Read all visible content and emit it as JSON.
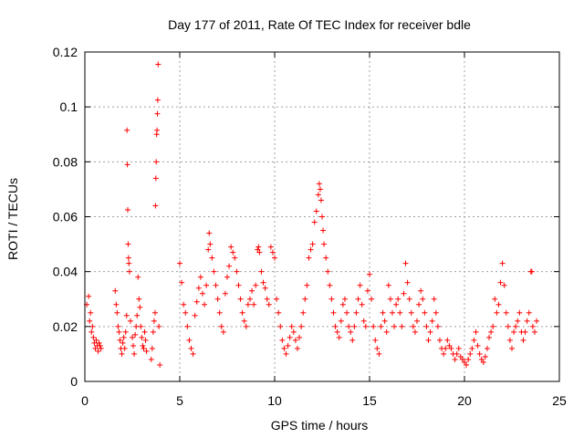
{
  "chart_data": {
    "type": "scatter",
    "title": "Day 177 of 2011, Rate Of TEC Index for receiver bdle",
    "xlabel": "GPS time / hours",
    "ylabel": "ROTI / TECUs",
    "xlim": [
      0,
      25
    ],
    "ylim": [
      0,
      0.12
    ],
    "xticks": [
      0,
      5,
      10,
      15,
      20,
      25
    ],
    "yticks": [
      0,
      0.02,
      0.04,
      0.06,
      0.08,
      0.1,
      0.12
    ],
    "xtick_labels": [
      "0",
      "5",
      "10",
      "15",
      "20",
      "25"
    ],
    "ytick_labels": [
      "0",
      "0.02",
      "0.04",
      "0.06",
      "0.08",
      "0.1",
      "0.12"
    ],
    "grid": true,
    "marker": "+",
    "color": "#ff0000",
    "series": [
      {
        "name": "ROTI",
        "points": [
          [
            0.1,
            0.028
          ],
          [
            0.2,
            0.031
          ],
          [
            0.25,
            0.022
          ],
          [
            0.3,
            0.025
          ],
          [
            0.35,
            0.018
          ],
          [
            0.4,
            0.02
          ],
          [
            0.45,
            0.016
          ],
          [
            0.5,
            0.014
          ],
          [
            0.55,
            0.012
          ],
          [
            0.6,
            0.015
          ],
          [
            0.65,
            0.013
          ],
          [
            0.7,
            0.011
          ],
          [
            0.75,
            0.014
          ],
          [
            0.8,
            0.013
          ],
          [
            0.85,
            0.012
          ],
          [
            1.6,
            0.033
          ],
          [
            1.65,
            0.028
          ],
          [
            1.7,
            0.025
          ],
          [
            1.75,
            0.02
          ],
          [
            1.8,
            0.018
          ],
          [
            1.85,
            0.015
          ],
          [
            1.9,
            0.012
          ],
          [
            1.95,
            0.01
          ],
          [
            2.0,
            0.014
          ],
          [
            2.05,
            0.016
          ],
          [
            2.1,
            0.012
          ],
          [
            2.15,
            0.018
          ],
          [
            2.2,
            0.024
          ],
          [
            2.22,
            0.0915
          ],
          [
            2.24,
            0.079
          ],
          [
            2.26,
            0.0625
          ],
          [
            2.28,
            0.05
          ],
          [
            2.3,
            0.045
          ],
          [
            2.32,
            0.043
          ],
          [
            2.35,
            0.04
          ],
          [
            2.4,
            0.022
          ],
          [
            2.5,
            0.016
          ],
          [
            2.55,
            0.013
          ],
          [
            2.6,
            0.01
          ],
          [
            2.65,
            0.017
          ],
          [
            2.7,
            0.02
          ],
          [
            2.75,
            0.024
          ],
          [
            2.8,
            0.038
          ],
          [
            2.85,
            0.03
          ],
          [
            2.9,
            0.027
          ],
          [
            2.95,
            0.02
          ],
          [
            3.0,
            0.016
          ],
          [
            3.05,
            0.013
          ],
          [
            3.1,
            0.012
          ],
          [
            3.15,
            0.018
          ],
          [
            3.2,
            0.015
          ],
          [
            3.25,
            0.011
          ],
          [
            3.5,
            0.008
          ],
          [
            3.55,
            0.012
          ],
          [
            3.6,
            0.018
          ],
          [
            3.65,
            0.022
          ],
          [
            3.7,
            0.025
          ],
          [
            3.72,
            0.064
          ],
          [
            3.74,
            0.074
          ],
          [
            3.76,
            0.08
          ],
          [
            3.78,
            0.09
          ],
          [
            3.8,
            0.0915
          ],
          [
            3.82,
            0.0975
          ],
          [
            3.84,
            0.1025
          ],
          [
            3.86,
            0.1155
          ],
          [
            3.9,
            0.02
          ],
          [
            3.95,
            0.006
          ],
          [
            5.0,
            0.043
          ],
          [
            5.1,
            0.036
          ],
          [
            5.2,
            0.028
          ],
          [
            5.3,
            0.025
          ],
          [
            5.4,
            0.02
          ],
          [
            5.5,
            0.015
          ],
          [
            5.6,
            0.012
          ],
          [
            5.7,
            0.01
          ],
          [
            5.8,
            0.024
          ],
          [
            5.9,
            0.029
          ],
          [
            6.0,
            0.034
          ],
          [
            6.1,
            0.038
          ],
          [
            6.2,
            0.032
          ],
          [
            6.3,
            0.028
          ],
          [
            6.4,
            0.035
          ],
          [
            6.5,
            0.048
          ],
          [
            6.55,
            0.054
          ],
          [
            6.6,
            0.05
          ],
          [
            6.7,
            0.045
          ],
          [
            6.8,
            0.04
          ],
          [
            6.9,
            0.035
          ],
          [
            7.0,
            0.03
          ],
          [
            7.1,
            0.025
          ],
          [
            7.2,
            0.02
          ],
          [
            7.3,
            0.018
          ],
          [
            7.4,
            0.032
          ],
          [
            7.5,
            0.038
          ],
          [
            7.6,
            0.042
          ],
          [
            7.7,
            0.049
          ],
          [
            7.8,
            0.047
          ],
          [
            7.9,
            0.045
          ],
          [
            8.0,
            0.04
          ],
          [
            8.1,
            0.035
          ],
          [
            8.2,
            0.03
          ],
          [
            8.3,
            0.025
          ],
          [
            8.4,
            0.022
          ],
          [
            8.5,
            0.02
          ],
          [
            8.6,
            0.028
          ],
          [
            8.7,
            0.03
          ],
          [
            8.8,
            0.033
          ],
          [
            8.9,
            0.028
          ],
          [
            9.0,
            0.035
          ],
          [
            9.1,
            0.048
          ],
          [
            9.15,
            0.049
          ],
          [
            9.2,
            0.047
          ],
          [
            9.3,
            0.04
          ],
          [
            9.4,
            0.036
          ],
          [
            9.5,
            0.034
          ],
          [
            9.6,
            0.03
          ],
          [
            9.7,
            0.028
          ],
          [
            9.8,
            0.049
          ],
          [
            9.9,
            0.047
          ],
          [
            10.0,
            0.045
          ],
          [
            10.1,
            0.03
          ],
          [
            10.2,
            0.025
          ],
          [
            10.3,
            0.02
          ],
          [
            10.4,
            0.015
          ],
          [
            10.5,
            0.012
          ],
          [
            10.6,
            0.01
          ],
          [
            10.7,
            0.013
          ],
          [
            10.8,
            0.016
          ],
          [
            10.9,
            0.02
          ],
          [
            11.0,
            0.018
          ],
          [
            11.1,
            0.015
          ],
          [
            11.2,
            0.012
          ],
          [
            11.3,
            0.016
          ],
          [
            11.4,
            0.02
          ],
          [
            11.5,
            0.025
          ],
          [
            11.6,
            0.03
          ],
          [
            11.7,
            0.035
          ],
          [
            11.8,
            0.045
          ],
          [
            11.9,
            0.048
          ],
          [
            12.0,
            0.05
          ],
          [
            12.1,
            0.058
          ],
          [
            12.2,
            0.062
          ],
          [
            12.3,
            0.068
          ],
          [
            12.35,
            0.072
          ],
          [
            12.4,
            0.07
          ],
          [
            12.45,
            0.066
          ],
          [
            12.5,
            0.06
          ],
          [
            12.55,
            0.055
          ],
          [
            12.6,
            0.05
          ],
          [
            12.7,
            0.045
          ],
          [
            12.8,
            0.04
          ],
          [
            12.9,
            0.035
          ],
          [
            13.0,
            0.03
          ],
          [
            13.1,
            0.025
          ],
          [
            13.2,
            0.02
          ],
          [
            13.3,
            0.018
          ],
          [
            13.4,
            0.016
          ],
          [
            13.5,
            0.022
          ],
          [
            13.6,
            0.028
          ],
          [
            13.7,
            0.03
          ],
          [
            13.8,
            0.025
          ],
          [
            13.9,
            0.02
          ],
          [
            14.0,
            0.018
          ],
          [
            14.1,
            0.015
          ],
          [
            14.2,
            0.02
          ],
          [
            14.3,
            0.025
          ],
          [
            14.4,
            0.03
          ],
          [
            14.5,
            0.035
          ],
          [
            14.6,
            0.028
          ],
          [
            14.7,
            0.022
          ],
          [
            14.8,
            0.02
          ],
          [
            14.9,
            0.033
          ],
          [
            15.0,
            0.039
          ],
          [
            15.1,
            0.03
          ],
          [
            15.2,
            0.02
          ],
          [
            15.3,
            0.015
          ],
          [
            15.4,
            0.012
          ],
          [
            15.5,
            0.01
          ],
          [
            15.6,
            0.02
          ],
          [
            15.7,
            0.025
          ],
          [
            15.8,
            0.022
          ],
          [
            15.9,
            0.018
          ],
          [
            16.0,
            0.035
          ],
          [
            16.1,
            0.03
          ],
          [
            16.2,
            0.025
          ],
          [
            16.3,
            0.02
          ],
          [
            16.4,
            0.028
          ],
          [
            16.5,
            0.03
          ],
          [
            16.6,
            0.025
          ],
          [
            16.7,
            0.02
          ],
          [
            16.8,
            0.032
          ],
          [
            16.9,
            0.043
          ],
          [
            17.0,
            0.036
          ],
          [
            17.1,
            0.03
          ],
          [
            17.2,
            0.025
          ],
          [
            17.3,
            0.02
          ],
          [
            17.4,
            0.018
          ],
          [
            17.5,
            0.022
          ],
          [
            17.6,
            0.028
          ],
          [
            17.7,
            0.033
          ],
          [
            17.8,
            0.03
          ],
          [
            17.9,
            0.025
          ],
          [
            18.0,
            0.02
          ],
          [
            18.1,
            0.015
          ],
          [
            18.2,
            0.018
          ],
          [
            18.3,
            0.022
          ],
          [
            18.4,
            0.03
          ],
          [
            18.5,
            0.025
          ],
          [
            18.6,
            0.02
          ],
          [
            18.7,
            0.015
          ],
          [
            18.8,
            0.012
          ],
          [
            18.9,
            0.01
          ],
          [
            19.0,
            0.012
          ],
          [
            19.1,
            0.015
          ],
          [
            19.2,
            0.013
          ],
          [
            19.3,
            0.012
          ],
          [
            19.4,
            0.01
          ],
          [
            19.5,
            0.008
          ],
          [
            19.6,
            0.01
          ],
          [
            19.7,
            0.012
          ],
          [
            19.8,
            0.009
          ],
          [
            19.9,
            0.008
          ],
          [
            20.0,
            0.007
          ],
          [
            20.1,
            0.006
          ],
          [
            20.2,
            0.008
          ],
          [
            20.3,
            0.01
          ],
          [
            20.4,
            0.012
          ],
          [
            20.5,
            0.015
          ],
          [
            20.6,
            0.018
          ],
          [
            20.7,
            0.013
          ],
          [
            20.8,
            0.01
          ],
          [
            20.9,
            0.008
          ],
          [
            21.0,
            0.007
          ],
          [
            21.1,
            0.009
          ],
          [
            21.2,
            0.012
          ],
          [
            21.3,
            0.016
          ],
          [
            21.4,
            0.018
          ],
          [
            21.5,
            0.02
          ],
          [
            21.6,
            0.03
          ],
          [
            21.7,
            0.025
          ],
          [
            21.8,
            0.028
          ],
          [
            21.9,
            0.036
          ],
          [
            22.0,
            0.043
          ],
          [
            22.1,
            0.035
          ],
          [
            22.2,
            0.025
          ],
          [
            22.3,
            0.02
          ],
          [
            22.4,
            0.015
          ],
          [
            22.5,
            0.012
          ],
          [
            22.6,
            0.018
          ],
          [
            22.7,
            0.02
          ],
          [
            22.8,
            0.022
          ],
          [
            22.9,
            0.025
          ],
          [
            23.0,
            0.018
          ],
          [
            23.1,
            0.015
          ],
          [
            23.2,
            0.018
          ],
          [
            23.3,
            0.022
          ],
          [
            23.4,
            0.025
          ],
          [
            23.5,
            0.04
          ],
          [
            23.55,
            0.04
          ],
          [
            23.6,
            0.02
          ],
          [
            23.7,
            0.018
          ],
          [
            23.8,
            0.022
          ]
        ]
      }
    ]
  }
}
